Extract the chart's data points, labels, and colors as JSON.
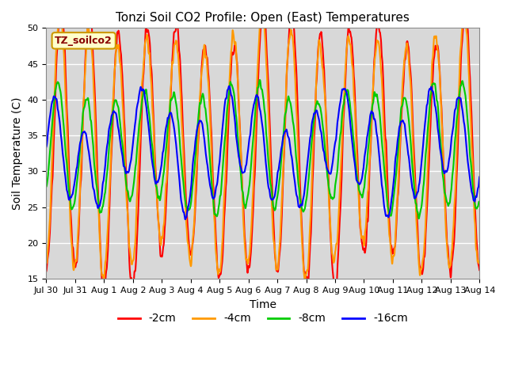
{
  "title": "Tonzi Soil CO2 Profile: Open (East) Temperatures",
  "ylabel": "Soil Temperature (C)",
  "xlabel": "Time",
  "ylim": [
    15,
    50
  ],
  "num_days": 15,
  "depths": [
    "-2cm",
    "-4cm",
    "-8cm",
    "-16cm"
  ],
  "colors": [
    "#ff0000",
    "#ff9900",
    "#00cc00",
    "#0000ff"
  ],
  "line_width": 1.5,
  "legend_title": "TZ_soilco2",
  "bg_color": "#d8d8d8",
  "fig_bg": "#ffffff",
  "x_tick_labels": [
    "Jul 30",
    "Jul 31",
    "Aug 1",
    "Aug 2",
    "Aug 3",
    "Aug 4",
    "Aug 5",
    "Aug 6",
    "Aug 7",
    "Aug 8",
    "Aug 9",
    "Aug 10",
    "Aug 11",
    "Aug 12",
    "Aug 13",
    "Aug 14"
  ],
  "x_tick_positions": [
    0,
    1,
    2,
    3,
    4,
    5,
    6,
    7,
    8,
    9,
    10,
    11,
    12,
    13,
    14,
    15
  ],
  "depth_params": [
    {
      "mean": 33,
      "amp": 17,
      "phase": 0.0,
      "amp_var": 2.0
    },
    {
      "mean": 33,
      "amp": 16,
      "phase": 0.15,
      "amp_var": 1.5
    },
    {
      "mean": 33,
      "amp": 8,
      "phase": 0.6,
      "amp_var": 1.0
    },
    {
      "mean": 33,
      "amp": 6,
      "phase": 1.2,
      "amp_var": 3.0
    }
  ]
}
